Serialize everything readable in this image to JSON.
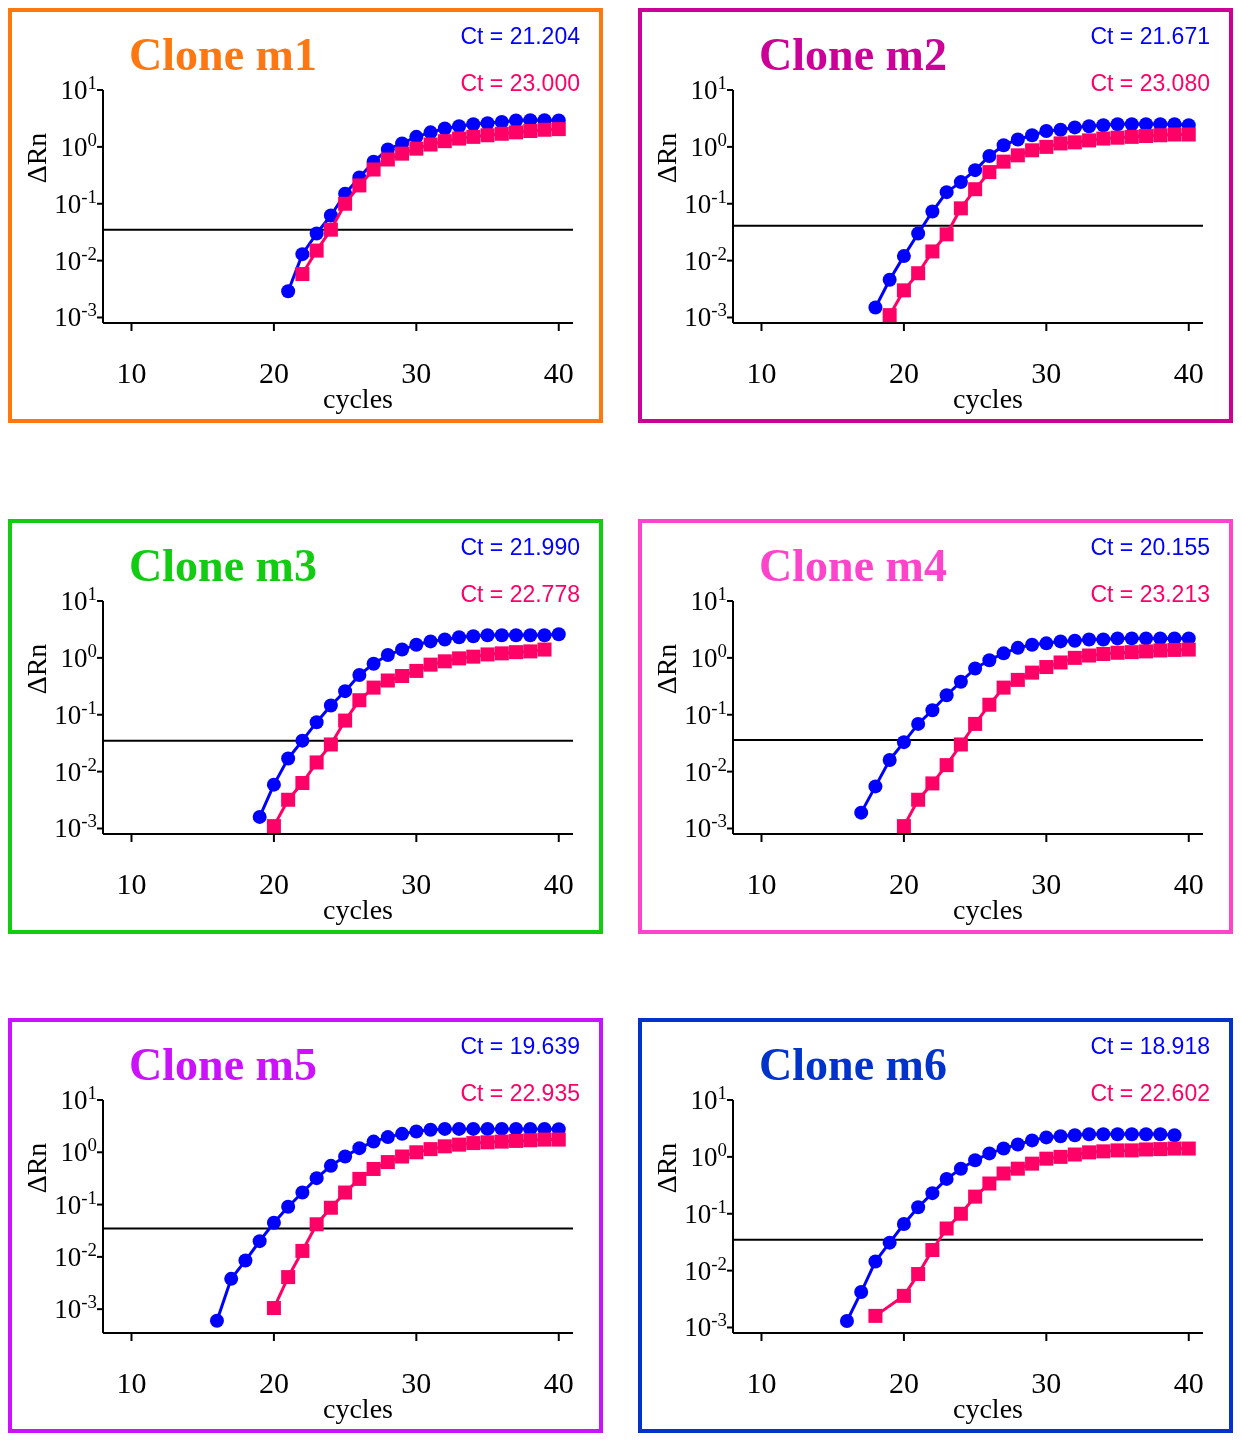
{
  "chart_data": [
    {
      "type": "line",
      "title": "Clone m1",
      "xlabel": "cycles",
      "ylabel": "ΔRn",
      "log": "y",
      "xlim": [
        8,
        41
      ],
      "xticks": [
        10,
        20,
        30,
        40
      ],
      "ylim": [
        0.0008,
        10
      ],
      "yticks": [
        {
          "value": 10,
          "label": "10$^{1}$"
        },
        {
          "value": 1,
          "label": "10$^{0}$"
        },
        {
          "value": 0.1,
          "label": "10$^{-1}$"
        },
        {
          "value": 0.01,
          "label": "10$^{-2}$"
        },
        {
          "value": 0.001,
          "label": "10$^{-3}$"
        }
      ],
      "grid": false,
      "line_style": "solid",
      "annotations": [
        "Ct = 21.204",
        "Ct = 23.000"
      ],
      "ref_lines": [
        {
          "axis": "y",
          "value": 0.035,
          "color": "#000000"
        }
      ],
      "series": [
        {
          "color": "#0000ff",
          "marker": "circle",
          "x": [
            21,
            22,
            23,
            24,
            25,
            26,
            27,
            28,
            29,
            30,
            31,
            32,
            33,
            34,
            35,
            36,
            37,
            38,
            39,
            40
          ],
          "values": [
            0.0029,
            0.013,
            0.03,
            0.062,
            0.15,
            0.29,
            0.55,
            0.9,
            1.15,
            1.5,
            1.8,
            2.1,
            2.3,
            2.5,
            2.6,
            2.75,
            2.9,
            2.95,
            2.95,
            2.9
          ]
        },
        {
          "color": "#ff0066",
          "marker": "square",
          "x": [
            22,
            23,
            24,
            25,
            26,
            27,
            28,
            29,
            30,
            31,
            32,
            33,
            34,
            35,
            36,
            37,
            38,
            39,
            40
          ],
          "values": [
            0.0058,
            0.015,
            0.035,
            0.1,
            0.21,
            0.4,
            0.6,
            0.76,
            0.93,
            1.1,
            1.26,
            1.4,
            1.5,
            1.6,
            1.7,
            1.8,
            1.9,
            2.0,
            2.05
          ]
        }
      ]
    },
    {
      "type": "line",
      "title": "Clone m2",
      "xlabel": "cycles",
      "ylabel": "ΔRn",
      "log": "y",
      "xlim": [
        8,
        41
      ],
      "xticks": [
        10,
        20,
        30,
        40
      ],
      "ylim": [
        0.0008,
        10
      ],
      "yticks": [
        {
          "value": 10,
          "label": "10$^{1}$"
        },
        {
          "value": 1,
          "label": "10$^{0}$"
        },
        {
          "value": 0.1,
          "label": "10$^{-1}$"
        },
        {
          "value": 0.01,
          "label": "10$^{-2}$"
        },
        {
          "value": 0.001,
          "label": "10$^{-3}$"
        }
      ],
      "grid": false,
      "line_style": "solid",
      "annotations": [
        "Ct = 21.671",
        "Ct = 23.080"
      ],
      "ref_lines": [
        {
          "axis": "y",
          "value": 0.041,
          "color": "#000000"
        }
      ],
      "series": [
        {
          "color": "#0000ff",
          "marker": "circle",
          "x": [
            18,
            19,
            20,
            21,
            22,
            23,
            24,
            25,
            26,
            27,
            28,
            29,
            30,
            31,
            32,
            33,
            34,
            35,
            36,
            37,
            38,
            39,
            40
          ],
          "values": [
            0.0015,
            0.0046,
            0.012,
            0.03,
            0.073,
            0.16,
            0.24,
            0.39,
            0.69,
            1.07,
            1.35,
            1.6,
            1.9,
            2.0,
            2.2,
            2.3,
            2.4,
            2.5,
            2.5,
            2.5,
            2.5,
            2.5,
            2.4
          ]
        },
        {
          "color": "#ff0066",
          "marker": "square",
          "x": [
            19,
            20,
            21,
            22,
            23,
            24,
            25,
            26,
            27,
            28,
            29,
            30,
            31,
            32,
            33,
            34,
            35,
            36,
            37,
            38,
            39,
            40
          ],
          "values": [
            0.0011,
            0.003,
            0.006,
            0.0145,
            0.029,
            0.083,
            0.18,
            0.36,
            0.55,
            0.71,
            0.87,
            1.0,
            1.15,
            1.2,
            1.3,
            1.4,
            1.45,
            1.5,
            1.55,
            1.6,
            1.65,
            1.65
          ]
        }
      ]
    },
    {
      "type": "line",
      "title": "Clone m3",
      "xlabel": "cycles",
      "ylabel": "ΔRn",
      "log": "y",
      "xlim": [
        8,
        41
      ],
      "xticks": [
        10,
        20,
        30,
        40
      ],
      "ylim": [
        0.0008,
        10
      ],
      "yticks": [
        {
          "value": 10,
          "label": "10$^{1}$"
        },
        {
          "value": 1,
          "label": "10$^{0}$"
        },
        {
          "value": 0.1,
          "label": "10$^{-1}$"
        },
        {
          "value": 0.01,
          "label": "10$^{-2}$"
        },
        {
          "value": 0.001,
          "label": "10$^{-3}$"
        }
      ],
      "grid": false,
      "line_style": "solid",
      "annotations": [
        "Ct = 21.990",
        "Ct = 22.778"
      ],
      "ref_lines": [
        {
          "axis": "y",
          "value": 0.035,
          "color": "#000000"
        }
      ],
      "series": [
        {
          "color": "#0000ff",
          "marker": "circle",
          "x": [
            19,
            20,
            21,
            22,
            23,
            24,
            25,
            26,
            27,
            28,
            29,
            30,
            31,
            32,
            33,
            34,
            35,
            36,
            37,
            38,
            39,
            40
          ],
          "values": [
            0.0016,
            0.0059,
            0.017,
            0.035,
            0.074,
            0.145,
            0.26,
            0.5,
            0.79,
            1.12,
            1.4,
            1.7,
            1.95,
            2.1,
            2.3,
            2.4,
            2.5,
            2.5,
            2.5,
            2.5,
            2.5,
            2.6
          ]
        },
        {
          "color": "#ff0066",
          "marker": "square",
          "x": [
            20,
            21,
            22,
            23,
            24,
            25,
            26,
            27,
            28,
            29,
            30,
            31,
            32,
            33,
            34,
            35,
            36,
            37,
            38,
            39
          ],
          "values": [
            0.0011,
            0.0032,
            0.0063,
            0.0145,
            0.03,
            0.079,
            0.18,
            0.3,
            0.4,
            0.48,
            0.59,
            0.76,
            0.87,
            0.98,
            1.05,
            1.15,
            1.2,
            1.26,
            1.3,
            1.4
          ]
        }
      ]
    },
    {
      "type": "line",
      "title": "Clone m4",
      "xlabel": "cycles",
      "ylabel": "ΔRn",
      "log": "y",
      "xlim": [
        8,
        41
      ],
      "xticks": [
        10,
        20,
        30,
        40
      ],
      "ylim": [
        0.0008,
        10
      ],
      "yticks": [
        {
          "value": 10,
          "label": "10$^{1}$"
        },
        {
          "value": 1,
          "label": "10$^{0}$"
        },
        {
          "value": 0.1,
          "label": "10$^{-1}$"
        },
        {
          "value": 0.01,
          "label": "10$^{-2}$"
        },
        {
          "value": 0.001,
          "label": "10$^{-3}$"
        }
      ],
      "grid": false,
      "line_style": "solid",
      "annotations": [
        "Ct = 20.155",
        "Ct = 23.213"
      ],
      "ref_lines": [
        {
          "axis": "y",
          "value": 0.036,
          "color": "#000000"
        }
      ],
      "series": [
        {
          "color": "#0000ff",
          "marker": "circle",
          "x": [
            17,
            18,
            19,
            20,
            21,
            22,
            23,
            24,
            25,
            26,
            27,
            28,
            29,
            30,
            31,
            32,
            33,
            34,
            35,
            36,
            37,
            38,
            39,
            40
          ],
          "values": [
            0.0019,
            0.0055,
            0.016,
            0.033,
            0.069,
            0.12,
            0.22,
            0.38,
            0.65,
            0.91,
            1.2,
            1.5,
            1.7,
            1.8,
            1.95,
            2.0,
            2.1,
            2.1,
            2.2,
            2.2,
            2.2,
            2.2,
            2.2,
            2.2
          ]
        },
        {
          "color": "#ff0066",
          "marker": "square",
          "x": [
            20,
            21,
            22,
            23,
            24,
            25,
            26,
            27,
            28,
            29,
            30,
            31,
            32,
            33,
            34,
            35,
            36,
            37,
            38,
            39,
            40
          ],
          "values": [
            0.0011,
            0.0032,
            0.0062,
            0.013,
            0.03,
            0.069,
            0.15,
            0.3,
            0.41,
            0.55,
            0.69,
            0.83,
            1.0,
            1.1,
            1.17,
            1.23,
            1.26,
            1.3,
            1.35,
            1.38,
            1.4
          ]
        }
      ]
    },
    {
      "type": "line",
      "title": "Clone m5",
      "xlabel": "cycles",
      "ylabel": "ΔRn",
      "log": "y",
      "xlim": [
        8,
        41
      ],
      "xticks": [
        10,
        20,
        30,
        40
      ],
      "ylim": [
        0.00035,
        10
      ],
      "yticks": [
        {
          "value": 10,
          "label": "10$^{1}$"
        },
        {
          "value": 1,
          "label": "10$^{0}$"
        },
        {
          "value": 0.1,
          "label": "10$^{-1}$"
        },
        {
          "value": 0.01,
          "label": "10$^{-2}$"
        },
        {
          "value": 0.001,
          "label": "10$^{-3}$"
        }
      ],
      "grid": false,
      "line_style": "solid",
      "annotations": [
        "Ct = 19.639",
        "Ct = 22.935"
      ],
      "ref_lines": [
        {
          "axis": "y",
          "value": 0.035,
          "color": "#000000"
        }
      ],
      "series": [
        {
          "color": "#0000ff",
          "marker": "circle",
          "x": [
            16,
            17,
            18,
            19,
            20,
            21,
            22,
            23,
            24,
            25,
            26,
            27,
            28,
            29,
            30,
            31,
            32,
            33,
            34,
            35,
            36,
            37,
            38,
            39,
            40
          ],
          "values": [
            0.0006,
            0.0038,
            0.0085,
            0.02,
            0.045,
            0.091,
            0.17,
            0.32,
            0.55,
            0.83,
            1.2,
            1.6,
            1.95,
            2.25,
            2.5,
            2.7,
            2.8,
            2.8,
            2.8,
            2.8,
            2.8,
            2.8,
            2.8,
            2.8,
            2.75
          ]
        },
        {
          "color": "#ff0066",
          "marker": "square",
          "x": [
            20,
            21,
            22,
            23,
            24,
            25,
            26,
            27,
            28,
            29,
            30,
            31,
            32,
            33,
            34,
            35,
            36,
            37,
            38,
            39,
            40
          ],
          "values": [
            0.00105,
            0.0041,
            0.013,
            0.042,
            0.087,
            0.17,
            0.31,
            0.48,
            0.65,
            0.83,
            1.0,
            1.15,
            1.3,
            1.4,
            1.5,
            1.55,
            1.6,
            1.65,
            1.7,
            1.75,
            1.75
          ]
        }
      ]
    },
    {
      "type": "line",
      "title": "Clone m6",
      "xlabel": "cycles",
      "ylabel": "ΔRn",
      "log": "y",
      "xlim": [
        8,
        41
      ],
      "xticks": [
        10,
        20,
        30,
        40
      ],
      "ylim": [
        0.0008,
        10
      ],
      "yticks": [
        {
          "value": 10,
          "label": "10$^{1}$"
        },
        {
          "value": 1,
          "label": "10$^{0}$"
        },
        {
          "value": 0.1,
          "label": "10$^{-1}$"
        },
        {
          "value": 0.01,
          "label": "10$^{-2}$"
        },
        {
          "value": 0.001,
          "label": "10$^{-3}$"
        }
      ],
      "grid": false,
      "line_style": "solid",
      "annotations": [
        "Ct = 18.918",
        "Ct = 22.602"
      ],
      "ref_lines": [
        {
          "axis": "y",
          "value": 0.035,
          "color": "#000000"
        }
      ],
      "series": [
        {
          "color": "#0000ff",
          "marker": "circle",
          "x": [
            16,
            17,
            18,
            19,
            20,
            21,
            22,
            23,
            24,
            25,
            26,
            27,
            28,
            29,
            30,
            31,
            32,
            33,
            34,
            35,
            36,
            37,
            38,
            39
          ],
          "values": [
            0.0013,
            0.0042,
            0.0145,
            0.031,
            0.066,
            0.13,
            0.23,
            0.41,
            0.62,
            0.87,
            1.15,
            1.4,
            1.65,
            1.95,
            2.2,
            2.3,
            2.4,
            2.5,
            2.5,
            2.5,
            2.5,
            2.5,
            2.5,
            2.4
          ]
        },
        {
          "color": "#ff0066",
          "marker": "square",
          "x": [
            18,
            20,
            21,
            22,
            23,
            24,
            25,
            26,
            27,
            28,
            29,
            30,
            31,
            32,
            33,
            34,
            35,
            36,
            37,
            38,
            39,
            40
          ],
          "values": [
            0.0016,
            0.0036,
            0.0087,
            0.023,
            0.055,
            0.1,
            0.2,
            0.34,
            0.51,
            0.62,
            0.76,
            0.93,
            1.0,
            1.1,
            1.2,
            1.25,
            1.3,
            1.3,
            1.35,
            1.37,
            1.4,
            1.4
          ]
        }
      ]
    }
  ]
}
